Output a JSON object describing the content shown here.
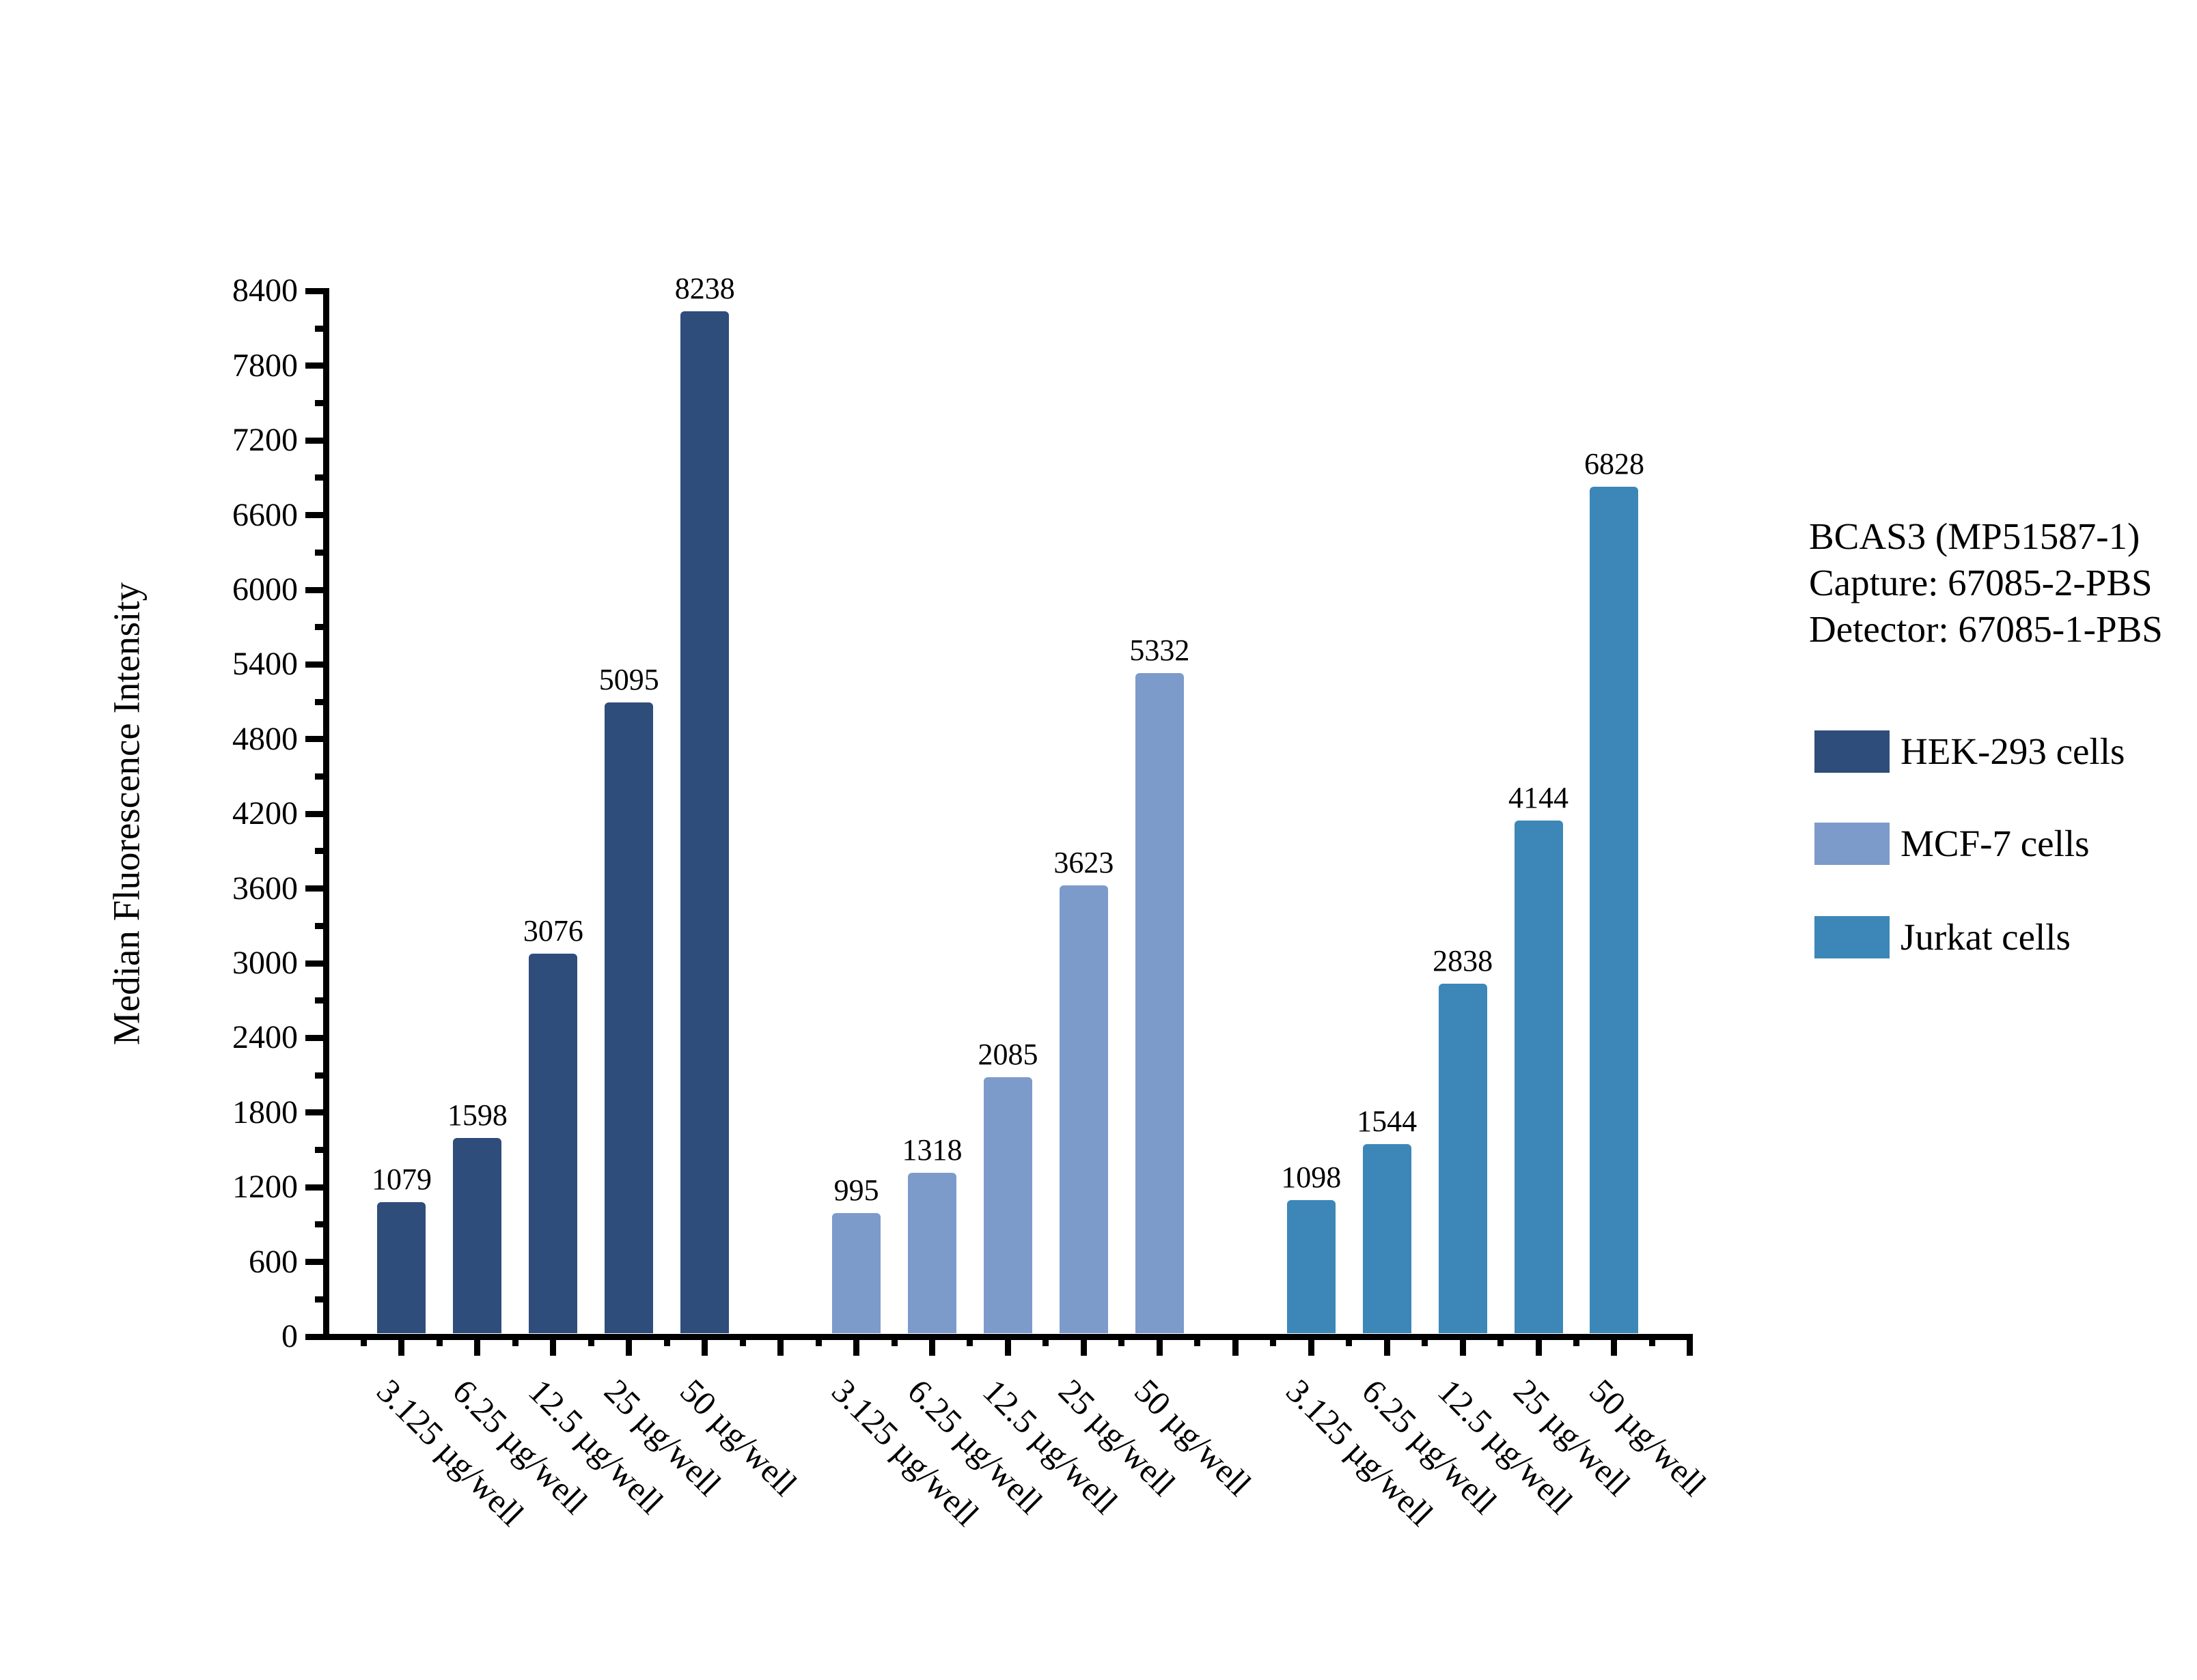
{
  "page": {
    "background": "#ffffff"
  },
  "chart_data": {
    "type": "bar",
    "title": "",
    "categories": [
      "3.125 µg/well",
      "6.25 µg/well",
      "12.5 µg/well",
      "25 µg/well",
      "50 µg/well"
    ],
    "series": [
      {
        "name": "HEK-293 cells",
        "color": "#2F4D7A",
        "values": [
          1079,
          1598,
          3076,
          5095,
          8238
        ]
      },
      {
        "name": "MCF-7 cells",
        "color": "#7C9BCA",
        "values": [
          995,
          1318,
          2085,
          3623,
          5332
        ]
      },
      {
        "name": "Jurkat cells",
        "color": "#3C87B7",
        "values": [
          1098,
          1544,
          2838,
          4144,
          6828
        ]
      }
    ],
    "xlabel": "",
    "ylabel": "Median Fluorescence Intensity",
    "ylim": [
      0,
      8400
    ],
    "y_major_step": 600,
    "y_minor_step": 300,
    "y_tick_labels": [
      "0",
      "600",
      "1200",
      "1800",
      "2400",
      "3000",
      "3600",
      "4200",
      "4800",
      "5400",
      "6000",
      "6600",
      "7200",
      "7800",
      "8400"
    ],
    "x_tick_label_rotation": -45,
    "grid": "off",
    "legend_position": "right",
    "bar_value_labels_shown": true
  },
  "legend": {
    "title_lines": [
      "BCAS3 (MP51587-1)",
      "Capture: 67085-2-PBS",
      "Detector: 67085-1-PBS"
    ],
    "entries": [
      "HEK-293 cells",
      "MCF-7 cells",
      "Jurkat cells"
    ]
  },
  "colors": {
    "axis": "#000000",
    "text": "#000000",
    "hek293": "#2F4D7A",
    "mcf7": "#7C9BCA",
    "jurkat": "#3C87B7"
  }
}
